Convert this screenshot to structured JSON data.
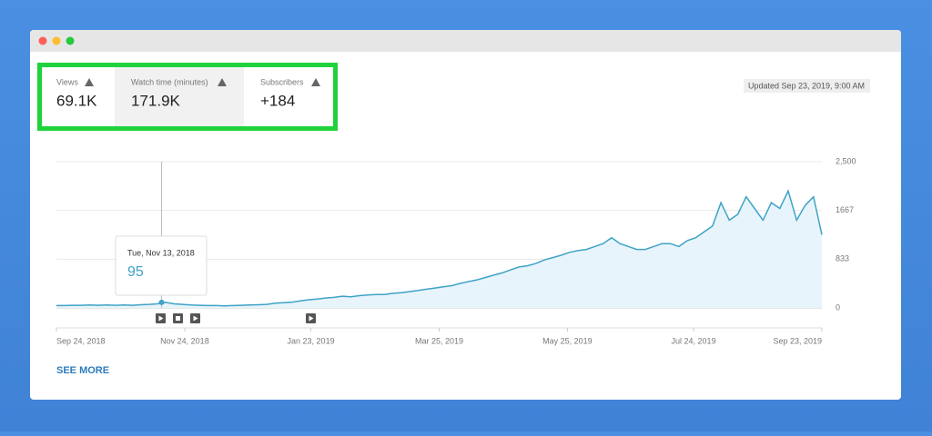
{
  "metrics": [
    {
      "label": "Views",
      "value": "69.1K"
    },
    {
      "label": "Watch time (minutes)",
      "value": "171.9K"
    },
    {
      "label": "Subscribers",
      "value": "+184"
    }
  ],
  "updated": "Updated Sep 23, 2019, 9:00 AM",
  "see_more": "SEE MORE",
  "chart": {
    "type": "line",
    "color": "#3ea3c6",
    "x": [
      "2018-09-24",
      "2018-09-28",
      "2018-10-02",
      "2018-10-06",
      "2018-10-10",
      "2018-10-14",
      "2018-10-18",
      "2018-10-22",
      "2018-10-26",
      "2018-10-30",
      "2018-11-03",
      "2018-11-07",
      "2018-11-11",
      "2018-11-15",
      "2018-11-19",
      "2018-11-23",
      "2018-11-27",
      "2018-12-01",
      "2018-12-05",
      "2018-12-09",
      "2018-12-13",
      "2018-12-17",
      "2018-12-21",
      "2018-12-25",
      "2018-12-29",
      "2019-01-02",
      "2019-01-06",
      "2019-01-10",
      "2019-01-14",
      "2019-01-18",
      "2019-01-22",
      "2019-01-26",
      "2019-01-30",
      "2019-02-03",
      "2019-02-07",
      "2019-02-11",
      "2019-02-15",
      "2019-02-19",
      "2019-02-23",
      "2019-02-27",
      "2019-03-03",
      "2019-03-07",
      "2019-03-11",
      "2019-03-15",
      "2019-03-19",
      "2019-03-23",
      "2019-03-27",
      "2019-03-31",
      "2019-04-04",
      "2019-04-08",
      "2019-04-12",
      "2019-04-16",
      "2019-04-20",
      "2019-04-24",
      "2019-04-28",
      "2019-05-02",
      "2019-05-06",
      "2019-05-10",
      "2019-05-14",
      "2019-05-18",
      "2019-05-22",
      "2019-05-26",
      "2019-05-30",
      "2019-06-03",
      "2019-06-07",
      "2019-06-11",
      "2019-06-15",
      "2019-06-19",
      "2019-06-23",
      "2019-06-27",
      "2019-07-01",
      "2019-07-05",
      "2019-07-09",
      "2019-07-13",
      "2019-07-17",
      "2019-07-21",
      "2019-07-25",
      "2019-07-29",
      "2019-08-02",
      "2019-08-06",
      "2019-08-10",
      "2019-08-14",
      "2019-08-18",
      "2019-08-22",
      "2019-08-26",
      "2019-08-30",
      "2019-09-03",
      "2019-09-07",
      "2019-09-11",
      "2019-09-15",
      "2019-09-19",
      "2019-09-23"
    ],
    "values": [
      40,
      40,
      45,
      45,
      50,
      45,
      50,
      45,
      50,
      45,
      55,
      60,
      70,
      95,
      70,
      60,
      50,
      45,
      40,
      40,
      35,
      40,
      45,
      50,
      55,
      60,
      80,
      90,
      100,
      120,
      140,
      150,
      170,
      180,
      200,
      190,
      210,
      220,
      230,
      230,
      250,
      260,
      280,
      300,
      320,
      340,
      360,
      380,
      420,
      450,
      480,
      520,
      560,
      600,
      650,
      700,
      720,
      760,
      820,
      860,
      900,
      950,
      980,
      1000,
      1050,
      1100,
      1200,
      1100,
      1050,
      1000,
      1000,
      1050,
      1100,
      1100,
      1050,
      1150,
      1200,
      1300,
      1400,
      1800,
      1500,
      1600,
      1900,
      1700,
      1500,
      1800,
      1700,
      2000,
      1500,
      1750,
      1900,
      1250
    ],
    "xlim": [
      "2018-09-24",
      "2019-09-23"
    ],
    "xticks": [
      {
        "value": "2018-09-24",
        "label": "Sep 24, 2018"
      },
      {
        "value": "2018-11-24",
        "label": "Nov 24, 2018"
      },
      {
        "value": "2019-01-23",
        "label": "Jan 23, 2019"
      },
      {
        "value": "2019-03-25",
        "label": "Mar 25, 2019"
      },
      {
        "value": "2019-05-25",
        "label": "May 25, 2019"
      },
      {
        "value": "2019-07-24",
        "label": "Jul 24, 2019"
      },
      {
        "value": "2019-09-23",
        "label": "Sep 23, 2019"
      }
    ],
    "ylim": [
      0,
      2500
    ],
    "yticks": [
      0,
      833,
      1667,
      {
        "value": 2500,
        "label": "2,500"
      }
    ],
    "grid": true,
    "tooltip": {
      "x": {
        "value": "2018-11-13",
        "label": "Tue, Nov 13, 2018"
      },
      "value": 95
    }
  }
}
